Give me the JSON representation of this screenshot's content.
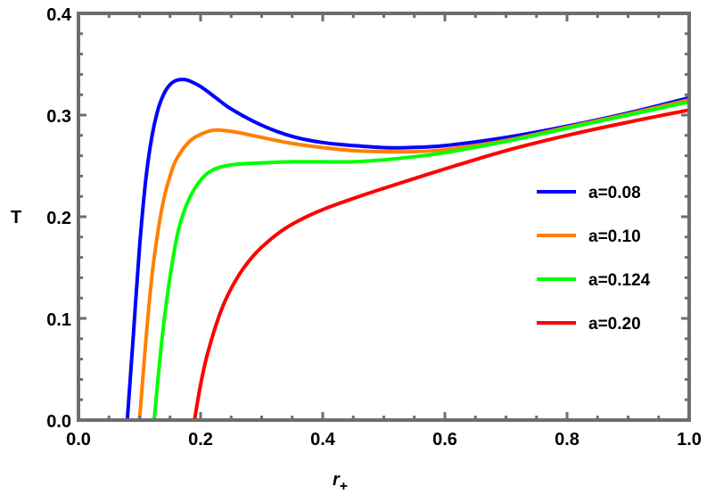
{
  "chart_data": {
    "type": "line",
    "title": "",
    "xlabel": "r",
    "xlabel_subscript": "+",
    "ylabel": "T",
    "xlim": [
      0.0,
      1.0
    ],
    "ylim": [
      0.0,
      0.4
    ],
    "x_ticks": [
      "0.0",
      "0.2",
      "0.4",
      "0.6",
      "0.8",
      "1.0"
    ],
    "y_ticks": [
      "0.0",
      "0.1",
      "0.2",
      "0.3",
      "0.4"
    ],
    "grid": false,
    "legend_position": "right-center inside",
    "frame_color": "#6e6e6e",
    "series": [
      {
        "name": "a=0.08",
        "color": "#0000ff",
        "x": [
          0.08,
          0.09,
          0.1,
          0.11,
          0.12,
          0.13,
          0.14,
          0.15,
          0.16,
          0.17,
          0.18,
          0.2,
          0.225,
          0.25,
          0.3,
          0.35,
          0.4,
          0.45,
          0.5,
          0.54,
          0.6,
          0.7,
          0.8,
          0.9,
          1.0
        ],
        "y": [
          0.0,
          0.085,
          0.17,
          0.235,
          0.278,
          0.305,
          0.321,
          0.33,
          0.334,
          0.335,
          0.334,
          0.328,
          0.317,
          0.306,
          0.29,
          0.279,
          0.273,
          0.27,
          0.268,
          0.268,
          0.27,
          0.278,
          0.289,
          0.302,
          0.317
        ]
      },
      {
        "name": "a=0.10",
        "color": "#ff8000",
        "x": [
          0.1,
          0.11,
          0.12,
          0.13,
          0.14,
          0.15,
          0.16,
          0.18,
          0.2,
          0.22,
          0.235,
          0.26,
          0.3,
          0.35,
          0.4,
          0.45,
          0.5,
          0.55,
          0.6,
          0.7,
          0.8,
          0.9,
          1.0
        ],
        "y": [
          0.0,
          0.075,
          0.14,
          0.185,
          0.218,
          0.24,
          0.256,
          0.273,
          0.281,
          0.285,
          0.285,
          0.283,
          0.278,
          0.272,
          0.268,
          0.265,
          0.264,
          0.264,
          0.266,
          0.275,
          0.288,
          0.301,
          0.315
        ]
      },
      {
        "name": "a=0.124",
        "color": "#00ff00",
        "x": [
          0.124,
          0.135,
          0.145,
          0.155,
          0.165,
          0.18,
          0.2,
          0.22,
          0.25,
          0.3,
          0.35,
          0.4,
          0.45,
          0.5,
          0.55,
          0.6,
          0.7,
          0.8,
          0.9,
          1.0
        ],
        "y": [
          0.0,
          0.07,
          0.12,
          0.16,
          0.19,
          0.216,
          0.236,
          0.246,
          0.251,
          0.253,
          0.254,
          0.254,
          0.254,
          0.256,
          0.259,
          0.263,
          0.274,
          0.287,
          0.3,
          0.313
        ]
      },
      {
        "name": "a=0.20",
        "color": "#ff0000",
        "x": [
          0.19,
          0.2,
          0.21,
          0.225,
          0.24,
          0.26,
          0.28,
          0.3,
          0.33,
          0.36,
          0.4,
          0.45,
          0.5,
          0.6,
          0.7,
          0.8,
          0.9,
          1.0
        ],
        "y": [
          0.0,
          0.035,
          0.062,
          0.093,
          0.117,
          0.14,
          0.157,
          0.17,
          0.185,
          0.196,
          0.207,
          0.218,
          0.228,
          0.247,
          0.265,
          0.28,
          0.293,
          0.305
        ]
      }
    ]
  }
}
